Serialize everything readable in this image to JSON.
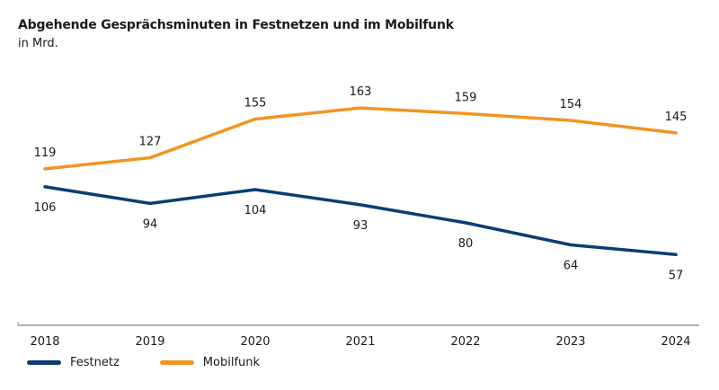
{
  "chart_data": {
    "type": "line",
    "title": "Abgehende Gesprächsminuten in Festnetzen und im Mobilfunk",
    "subtitle": "in Mrd.",
    "categories": [
      "2018",
      "2019",
      "2020",
      "2021",
      "2022",
      "2023",
      "2024"
    ],
    "series": [
      {
        "name": "Festnetz",
        "color": "#0b3d73",
        "values": [
          106,
          94,
          104,
          93,
          80,
          64,
          57
        ]
      },
      {
        "name": "Mobilfunk",
        "color": "#f29422",
        "values": [
          119,
          127,
          155,
          163,
          159,
          154,
          145
        ]
      }
    ],
    "ylim": [
      0,
      180
    ],
    "grid": false,
    "legend": "bottom-left",
    "xlabel": "",
    "ylabel": ""
  }
}
